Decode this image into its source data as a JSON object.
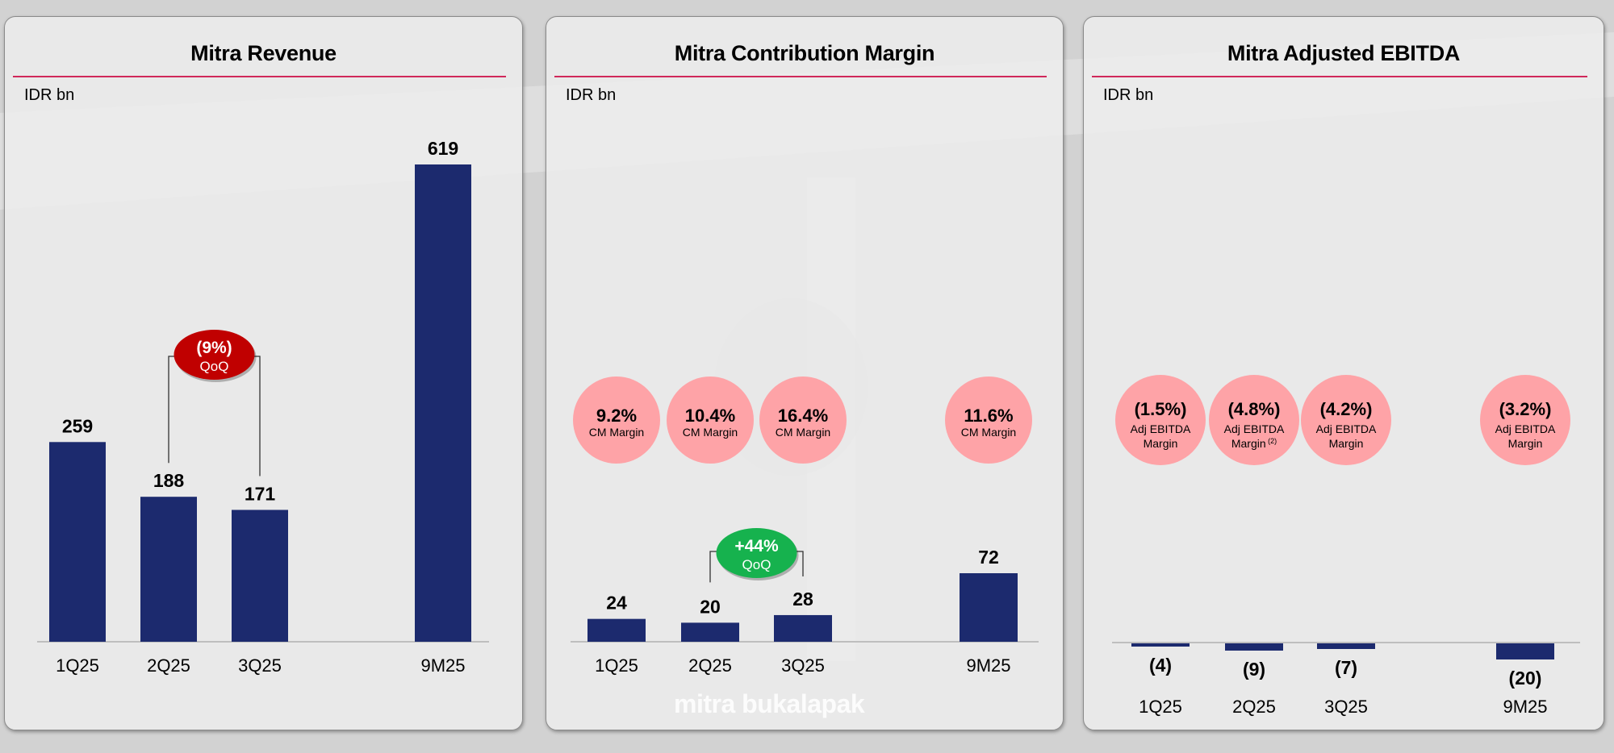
{
  "colors": {
    "bar": "#1c2a6e",
    "rule": "#d0285a",
    "bubble": "#fea3a7",
    "qoq_negative": "#c00000",
    "qoq_positive": "#16b24e",
    "baseline": "#b0b0b0"
  },
  "watermark": "mitra bukalapak",
  "chart_data": [
    {
      "type": "bar",
      "title": "Mitra Revenue",
      "ylabel": "IDR bn",
      "categories": [
        "1Q25",
        "2Q25",
        "3Q25",
        "9M25"
      ],
      "values": [
        259,
        188,
        171,
        619
      ],
      "value_labels": [
        "259",
        "188",
        "171",
        "619"
      ],
      "annotation": {
        "from": "2Q25",
        "to": "3Q25",
        "line1": "(9%)",
        "line2": "QoQ",
        "sentiment": "negative"
      }
    },
    {
      "type": "bar",
      "title": "Mitra Contribution Margin",
      "ylabel": "IDR bn",
      "categories": [
        "1Q25",
        "2Q25",
        "3Q25",
        "9M25"
      ],
      "values": [
        24,
        20,
        28,
        72
      ],
      "value_labels": [
        "24",
        "20",
        "28",
        "72"
      ],
      "margins": [
        {
          "value": "9.2%",
          "label": "CM Margin",
          "sup": ""
        },
        {
          "value": "10.4%",
          "label": "CM Margin",
          "sup": ""
        },
        {
          "value": "16.4%",
          "label": "CM Margin",
          "sup": ""
        },
        {
          "value": "11.6%",
          "label": "CM Margin",
          "sup": ""
        }
      ],
      "annotation": {
        "from": "2Q25",
        "to": "3Q25",
        "line1": "+44%",
        "line2": "QoQ",
        "sentiment": "positive"
      }
    },
    {
      "type": "bar",
      "title": "Mitra Adjusted EBITDA",
      "ylabel": "IDR bn",
      "categories": [
        "1Q25",
        "2Q25",
        "3Q25",
        "9M25"
      ],
      "values": [
        -4,
        -9,
        -7,
        -20
      ],
      "value_labels": [
        "(4)",
        "(9)",
        "(7)",
        "(20)"
      ],
      "margins": [
        {
          "value": "(1.5%)",
          "label": "Adj EBITDA",
          "label2": "Margin",
          "sup": ""
        },
        {
          "value": "(4.8%)",
          "label": "Adj EBITDA",
          "label2": "Margin",
          "sup": "(2)"
        },
        {
          "value": "(4.2%)",
          "label": "Adj EBITDA",
          "label2": "Margin",
          "sup": ""
        },
        {
          "value": "(3.2%)",
          "label": "Adj EBITDA",
          "label2": "Margin",
          "sup": ""
        }
      ]
    }
  ]
}
